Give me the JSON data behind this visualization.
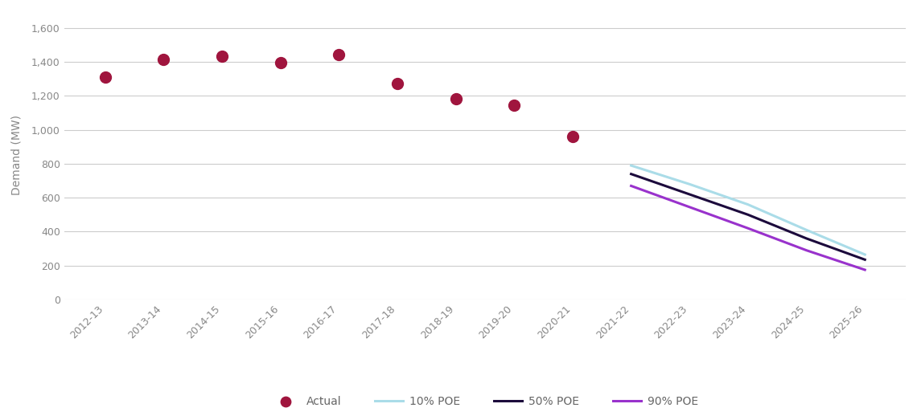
{
  "categories": [
    "2012-13",
    "2013-14",
    "2014-15",
    "2015-16",
    "2016-17",
    "2017-18",
    "2018-19",
    "2019-20",
    "2020-21",
    "2021-22",
    "2022-23",
    "2023-24",
    "2024-25",
    "2025-26"
  ],
  "actual_x": [
    0,
    1,
    2,
    3,
    4,
    5,
    6,
    7,
    8
  ],
  "actual_y": [
    1310,
    1415,
    1435,
    1395,
    1445,
    1275,
    1185,
    1145,
    960
  ],
  "forecast_x": [
    9,
    10,
    11,
    12,
    13
  ],
  "poe10_y": [
    790,
    680,
    560,
    410,
    265
  ],
  "poe50_y": [
    740,
    620,
    500,
    360,
    235
  ],
  "poe90_y": [
    670,
    545,
    420,
    290,
    175
  ],
  "actual_color": "#A0153E",
  "poe10_color": "#AADCE8",
  "poe50_color": "#1C0A3C",
  "poe90_color": "#9932CC",
  "ylabel": "Demand (MW)",
  "ylim": [
    0,
    1700
  ],
  "yticks": [
    0,
    200,
    400,
    600,
    800,
    1000,
    1200,
    1400,
    1600
  ],
  "bg_color": "#FFFFFF",
  "plot_bg_color": "#FFFFFF",
  "grid_color": "#CCCCCC",
  "tick_color": "#888888",
  "legend_items": [
    "Actual",
    "10% POE",
    "50% POE",
    "90% POE"
  ]
}
